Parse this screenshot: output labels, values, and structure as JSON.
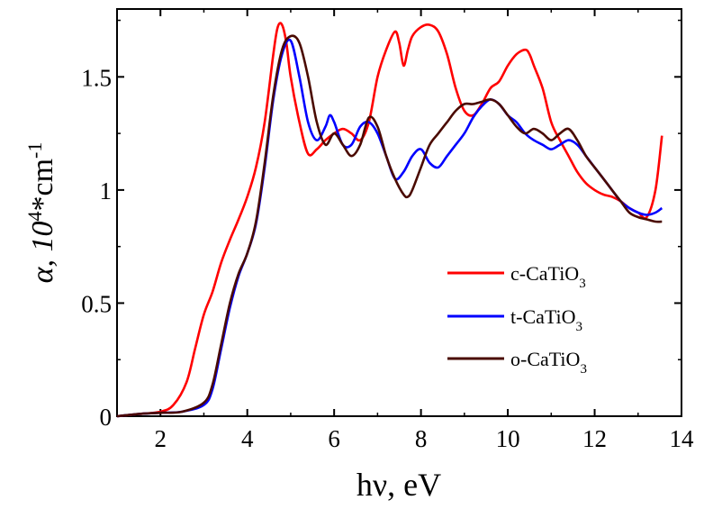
{
  "chart_data": {
    "type": "line",
    "title": "",
    "xlabel": {
      "main": "hν, eV"
    },
    "ylabel": {
      "prefix": "α,  10",
      "sup": "4",
      "mid": "*cm",
      "sup2": "-1"
    },
    "xlim": [
      1,
      14
    ],
    "ylim": [
      0,
      1.8
    ],
    "xticks": [
      2,
      4,
      6,
      8,
      10,
      12,
      14
    ],
    "yticks": [
      0,
      0.5,
      1,
      1.5
    ],
    "ytick_labels": [
      "0",
      "0.5",
      "1",
      "1.5"
    ],
    "grid": false,
    "legend_position": "lower-right",
    "series": [
      {
        "name": "c-CaTiO3",
        "legend": {
          "base": "c-CaTiO",
          "sub": "3"
        },
        "color": "#ff0000",
        "x": [
          1.0,
          1.5,
          2.0,
          2.3,
          2.6,
          2.8,
          3.0,
          3.2,
          3.4,
          3.6,
          3.8,
          4.0,
          4.2,
          4.4,
          4.6,
          4.7,
          4.8,
          4.9,
          5.0,
          5.2,
          5.4,
          5.6,
          5.8,
          6.0,
          6.2,
          6.4,
          6.6,
          6.8,
          7.0,
          7.2,
          7.4,
          7.5,
          7.6,
          7.7,
          7.8,
          8.0,
          8.2,
          8.4,
          8.6,
          8.8,
          9.0,
          9.2,
          9.4,
          9.6,
          9.8,
          10.0,
          10.2,
          10.4,
          10.5,
          10.6,
          10.8,
          11.0,
          11.2,
          11.4,
          11.6,
          11.8,
          12.0,
          12.2,
          12.4,
          12.6,
          12.8,
          13.0,
          13.2,
          13.4,
          13.55
        ],
        "y": [
          0.0,
          0.01,
          0.02,
          0.05,
          0.15,
          0.3,
          0.45,
          0.55,
          0.68,
          0.78,
          0.87,
          0.97,
          1.1,
          1.3,
          1.6,
          1.72,
          1.73,
          1.65,
          1.5,
          1.3,
          1.16,
          1.18,
          1.22,
          1.25,
          1.27,
          1.25,
          1.22,
          1.3,
          1.5,
          1.62,
          1.7,
          1.65,
          1.55,
          1.62,
          1.68,
          1.72,
          1.73,
          1.7,
          1.6,
          1.45,
          1.35,
          1.33,
          1.38,
          1.45,
          1.48,
          1.55,
          1.6,
          1.62,
          1.6,
          1.55,
          1.45,
          1.3,
          1.22,
          1.15,
          1.08,
          1.03,
          1.0,
          0.98,
          0.97,
          0.95,
          0.92,
          0.9,
          0.88,
          1.0,
          1.24
        ]
      },
      {
        "name": "t-CaTiO3",
        "legend": {
          "base": "t-CaTiO",
          "sub": "3"
        },
        "color": "#0000ff",
        "x": [
          1.0,
          1.5,
          2.0,
          2.5,
          3.0,
          3.2,
          3.4,
          3.6,
          3.8,
          4.0,
          4.2,
          4.4,
          4.6,
          4.8,
          5.0,
          5.2,
          5.4,
          5.6,
          5.8,
          5.9,
          6.0,
          6.2,
          6.4,
          6.6,
          6.8,
          7.0,
          7.2,
          7.4,
          7.6,
          7.8,
          8.0,
          8.2,
          8.4,
          8.6,
          8.8,
          9.0,
          9.2,
          9.4,
          9.6,
          9.8,
          10.0,
          10.2,
          10.4,
          10.6,
          10.8,
          11.0,
          11.2,
          11.4,
          11.6,
          11.8,
          12.0,
          12.2,
          12.4,
          12.6,
          12.8,
          13.0,
          13.2,
          13.4,
          13.55
        ],
        "y": [
          0.0,
          0.01,
          0.015,
          0.02,
          0.05,
          0.12,
          0.3,
          0.48,
          0.62,
          0.72,
          0.85,
          1.1,
          1.4,
          1.6,
          1.66,
          1.5,
          1.3,
          1.22,
          1.28,
          1.33,
          1.3,
          1.2,
          1.2,
          1.28,
          1.3,
          1.25,
          1.15,
          1.05,
          1.08,
          1.15,
          1.18,
          1.12,
          1.1,
          1.15,
          1.2,
          1.25,
          1.32,
          1.37,
          1.4,
          1.38,
          1.33,
          1.3,
          1.25,
          1.22,
          1.2,
          1.18,
          1.2,
          1.22,
          1.2,
          1.15,
          1.1,
          1.05,
          1.0,
          0.95,
          0.92,
          0.9,
          0.89,
          0.9,
          0.92
        ]
      },
      {
        "name": "o-CaTiO3",
        "legend": {
          "base": "o-CaTiO",
          "sub": "3"
        },
        "color": "#4a0a00",
        "x": [
          1.0,
          1.5,
          2.0,
          2.5,
          3.0,
          3.2,
          3.4,
          3.6,
          3.8,
          4.0,
          4.2,
          4.4,
          4.6,
          4.8,
          5.0,
          5.2,
          5.4,
          5.6,
          5.8,
          6.0,
          6.2,
          6.4,
          6.6,
          6.8,
          7.0,
          7.2,
          7.4,
          7.6,
          7.7,
          7.8,
          8.0,
          8.2,
          8.4,
          8.6,
          8.8,
          9.0,
          9.2,
          9.4,
          9.6,
          9.8,
          10.0,
          10.2,
          10.4,
          10.6,
          10.8,
          11.0,
          11.2,
          11.4,
          11.6,
          11.8,
          12.0,
          12.2,
          12.4,
          12.6,
          12.8,
          13.0,
          13.2,
          13.4,
          13.55
        ],
        "y": [
          0.0,
          0.01,
          0.015,
          0.02,
          0.06,
          0.14,
          0.32,
          0.5,
          0.63,
          0.72,
          0.86,
          1.12,
          1.42,
          1.62,
          1.68,
          1.65,
          1.5,
          1.3,
          1.2,
          1.25,
          1.2,
          1.15,
          1.2,
          1.32,
          1.28,
          1.15,
          1.05,
          0.98,
          0.97,
          1.0,
          1.1,
          1.2,
          1.25,
          1.3,
          1.35,
          1.38,
          1.38,
          1.39,
          1.4,
          1.38,
          1.33,
          1.28,
          1.25,
          1.27,
          1.25,
          1.22,
          1.25,
          1.27,
          1.22,
          1.15,
          1.1,
          1.05,
          1.0,
          0.95,
          0.9,
          0.88,
          0.87,
          0.86,
          0.86
        ]
      }
    ]
  }
}
